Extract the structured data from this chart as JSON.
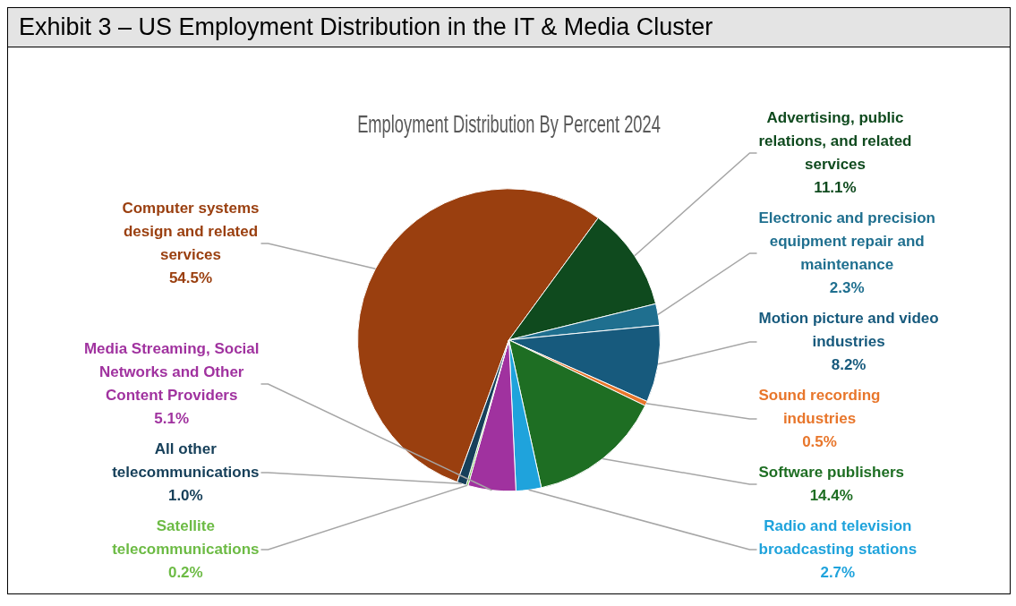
{
  "chart_data": {
    "type": "pie",
    "title": "Exhibit 3 – US Employment Distribution in the IT & Media Cluster",
    "subtitle": "Employment Distribution By Percent 2024",
    "categories": [
      "Computer systems design and related services",
      "Advertising, public relations, and related services",
      "Electronic and precision equipment repair and maintenance",
      "Motion picture and video industries",
      "Sound recording industries",
      "Software publishers",
      "Radio and television broadcasting stations",
      "Media Streaming, Social Networks and Other Content Providers",
      "Satellite telecommunications",
      "All other telecommunications"
    ],
    "values": [
      54.5,
      11.1,
      2.3,
      8.2,
      0.5,
      14.4,
      2.7,
      5.1,
      0.2,
      1.0
    ],
    "colors": [
      "#9a3f0f",
      "#0f4a1e",
      "#1f6f8f",
      "#175a7d",
      "#e8762b",
      "#1e6e23",
      "#1fa3dc",
      "#a0329f",
      "#6dbb45",
      "#17405a"
    ],
    "value_labels": [
      "54.5%",
      "11.1%",
      "2.3%",
      "8.2%",
      "0.5%",
      "14.4%",
      "2.7%",
      "5.1%",
      "0.2%",
      "1.0%"
    ]
  }
}
